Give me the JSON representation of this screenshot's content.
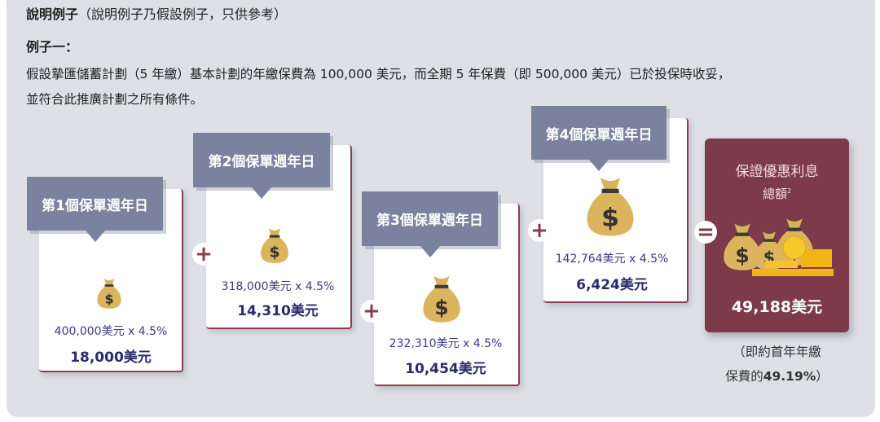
{
  "header": {
    "title": "說明例子",
    "subtitle": "（說明例子乃假設例子，只供參考）"
  },
  "example": {
    "title": "例子一：",
    "line1": "假設摯匯儲蓄計劃（5 年繳）基本計劃的年繳保費為 100,000 美元，而全期 5 年保費（即 500,000 美元）已於投保時收妥，",
    "line2": "並符合此推廣計劃之所有條件。"
  },
  "cards": [
    {
      "label": "第1個保單週年日",
      "calc": "400,000美元 x 4.5%",
      "result": "18,000美元"
    },
    {
      "label": "第2個保單週年日",
      "calc": "318,000美元 x 4.5%",
      "result": "14,310美元"
    },
    {
      "label": "第3個保單週年日",
      "calc": "232,310美元 x 4.5%",
      "result": "10,454美元"
    },
    {
      "label": "第4個保單週年日",
      "calc": "142,764美元 x 4.5%",
      "result": "6,424美元"
    }
  ],
  "operators": {
    "plus": "+",
    "equals": "="
  },
  "total": {
    "title": "保證優惠利息",
    "title2": "總額",
    "footnote": "2",
    "amount": "49,188美元",
    "note1": "（即約首年年繳",
    "note2_prefix": "保費的",
    "note2_pct": "49.19%",
    "note2_suffix": "）"
  },
  "colors": {
    "maroon": "#7d3a4b",
    "tab": "#7b829f",
    "value": "#2b2a6a",
    "bag": "#d8b25a"
  }
}
